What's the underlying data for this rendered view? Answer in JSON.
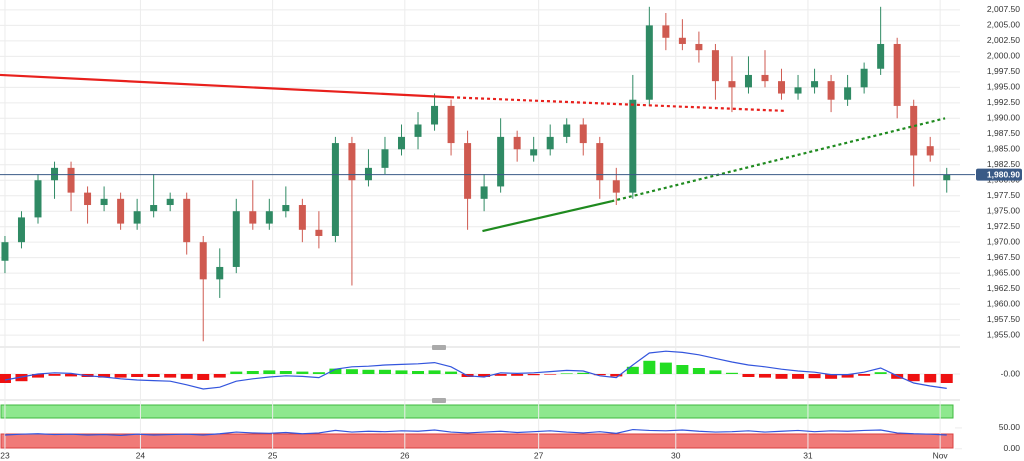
{
  "chart_data": {
    "type": "candlestick",
    "xlim": [
      -0.3,
      57.5
    ],
    "xticks": [
      {
        "value": 0.0,
        "label": "23"
      },
      {
        "value": 8.2,
        "label": "24"
      },
      {
        "value": 16.2,
        "label": "25"
      },
      {
        "value": 24.2,
        "label": "26"
      },
      {
        "value": 32.3,
        "label": "27"
      },
      {
        "value": 40.6,
        "label": "30"
      },
      {
        "value": 48.6,
        "label": "31"
      },
      {
        "value": 56.6,
        "label": "Nov"
      }
    ],
    "ylim": [
      1953.4,
      2009.1
    ],
    "yticks": [
      {
        "value": 2007.5,
        "label": "2,007.50"
      },
      {
        "value": 2005,
        "label": "2,005.00"
      },
      {
        "value": 2002.5,
        "label": "2,002.50"
      },
      {
        "value": 2000,
        "label": "2,000.00"
      },
      {
        "value": 1997.5,
        "label": "1,997.50"
      },
      {
        "value": 1995,
        "label": "1,995.00"
      },
      {
        "value": 1992.5,
        "label": "1,992.50"
      },
      {
        "value": 1990,
        "label": "1,990.00"
      },
      {
        "value": 1987.5,
        "label": "1,987.50"
      },
      {
        "value": 1985,
        "label": "1,985.00"
      },
      {
        "value": 1982.5,
        "label": "1,982.50"
      },
      {
        "value": 1980,
        "label": "1,980.00"
      },
      {
        "value": 1977.5,
        "label": "1,977.50"
      },
      {
        "value": 1975,
        "label": "1,975.00"
      },
      {
        "value": 1972.5,
        "label": "1,972.50"
      },
      {
        "value": 1970,
        "label": "1,970.00"
      },
      {
        "value": 1967.5,
        "label": "1,967.50"
      },
      {
        "value": 1965,
        "label": "1,965.00"
      },
      {
        "value": 1962.5,
        "label": "1,962.50"
      },
      {
        "value": 1960,
        "label": "1,960.00"
      },
      {
        "value": 1957.5,
        "label": "1,957.50"
      },
      {
        "value": 1955,
        "label": "1,955.00"
      }
    ],
    "grid": true,
    "up_color": "#2f8a64",
    "down_color": "#cf5a50",
    "open": [
      1967,
      1970,
      1974,
      1980,
      1982,
      1978,
      1976,
      1977,
      1973,
      1975,
      1976,
      1977,
      1970,
      1964,
      1966,
      1975,
      1973,
      1975,
      1976,
      1972,
      1971,
      1986,
      1980,
      1982,
      1985,
      1987,
      1989,
      1992,
      1986,
      1977,
      1979,
      1987,
      1984,
      1985,
      1987,
      1989,
      1986,
      1980,
      1978,
      1993,
      2005,
      2003,
      2002,
      2001,
      1996,
      1995,
      1997,
      1996,
      1994,
      1995,
      1996,
      1993,
      1995,
      1998,
      2002,
      1992,
      1985.5,
      1980
    ],
    "high": [
      1971,
      1975,
      1981,
      1983,
      1983,
      1979,
      1979,
      1978,
      1977,
      1981,
      1978,
      1978,
      1971,
      1969,
      1977,
      1980,
      1977,
      1979,
      1977,
      1975,
      1987,
      1987,
      1985,
      1987,
      1989,
      1991,
      1994,
      1993,
      1988,
      1981,
      1990,
      1988,
      1987,
      1989,
      1990,
      1990,
      1987,
      1982,
      1997,
      2008,
      2007,
      2006,
      2004,
      2002,
      2000,
      2000,
      2001,
      1998,
      1997,
      1998,
      1997,
      1997,
      1999,
      2008,
      2003,
      1993,
      1987,
      1982
    ],
    "low": [
      1965,
      1969,
      1973,
      1977,
      1975,
      1973,
      1975,
      1972,
      1972,
      1974,
      1975,
      1968,
      1954,
      1961,
      1965,
      1972,
      1972,
      1974,
      1970,
      1969,
      1970,
      1963,
      1979,
      1981,
      1984,
      1985,
      1988,
      1984,
      1972,
      1975,
      1978,
      1983,
      1983,
      1984,
      1986,
      1984,
      1977,
      1976,
      1977,
      1992,
      2001,
      2001,
      1999,
      1993,
      1991,
      1994,
      1995,
      1993,
      1993,
      1994,
      1991,
      1992,
      1994,
      1997,
      1990,
      1979,
      1983,
      1978
    ],
    "close": [
      1970,
      1974,
      1980,
      1982,
      1978,
      1976,
      1977,
      1973,
      1975,
      1976,
      1977,
      1970,
      1964,
      1966,
      1975,
      1973,
      1975,
      1976,
      1972,
      1971,
      1986,
      1980,
      1982,
      1985,
      1987,
      1989,
      1992,
      1986,
      1977,
      1979,
      1987,
      1985,
      1985,
      1987,
      1989,
      1986,
      1980,
      1978,
      1993,
      2005,
      2003,
      2002,
      2001,
      1996,
      1995,
      1997,
      1996,
      1994,
      1995,
      1996,
      1993,
      1995,
      1998,
      2002,
      1992,
      1984,
      1984,
      1980.9
    ],
    "last_price": {
      "value": 1980.9,
      "label": "1,980.90",
      "color": "#3a5a86"
    },
    "trendlines": [
      {
        "color": "#e8201c",
        "x": [
          -0.3,
          27.0,
          47.2
        ],
        "y": [
          1997.0,
          1993.4,
          1991.2
        ]
      },
      {
        "color": "#1f8a1f",
        "x": [
          28.9,
          36.7,
          56.9
        ],
        "y": [
          1971.8,
          1976.6,
          1990.0
        ]
      }
    ],
    "macd": {
      "ylim": [
        -4,
        4
      ],
      "yticks": [
        {
          "value": 0,
          "label": "-0.00"
        }
      ],
      "histogram": [
        -1.5,
        -1.2,
        -0.6,
        -0.3,
        -0.4,
        -0.5,
        -0.6,
        -0.6,
        -0.5,
        -0.5,
        -0.6,
        -0.8,
        -1.0,
        -0.6,
        0.4,
        0.5,
        0.6,
        0.5,
        0.4,
        0.3,
        0.9,
        0.8,
        0.7,
        0.7,
        0.6,
        0.5,
        0.6,
        0.4,
        -0.5,
        -0.5,
        -0.3,
        -0.3,
        -0.2,
        -0.1,
        0.1,
        0.2,
        -0.2,
        -0.4,
        1.2,
        2.2,
        1.9,
        1.5,
        1.0,
        0.6,
        0.2,
        -0.5,
        -0.6,
        -0.8,
        -0.8,
        -0.7,
        -0.8,
        -0.6,
        -0.3,
        0.3,
        -0.8,
        -1.2,
        -1.4,
        -1.5
      ],
      "line": [
        -1.0,
        -0.5,
        0,
        0.2,
        0.1,
        -0.3,
        -0.5,
        -0.8,
        -1.0,
        -1.1,
        -1.2,
        -1.8,
        -2.5,
        -2.2,
        -1.2,
        -0.8,
        -0.5,
        -0.3,
        -0.4,
        -0.6,
        0.8,
        1.2,
        1.3,
        1.5,
        1.6,
        1.7,
        1.9,
        1.2,
        -0.3,
        -0.5,
        0.2,
        0.1,
        0.2,
        0.4,
        0.6,
        0.5,
        -0.3,
        -0.6,
        1.5,
        3.5,
        3.8,
        3.6,
        3.2,
        2.6,
        2.0,
        1.5,
        1.2,
        0.8,
        0.5,
        0.3,
        -0.1,
        -0.1,
        0.3,
        1.0,
        -0.3,
        -1.5,
        -2.0,
        -2.4
      ],
      "up_color": "#22dd22",
      "down_color": "#ee1111",
      "line_color": "#3355dd"
    },
    "oscillator": {
      "ylim": [
        -3,
        105
      ],
      "yticks": [
        {
          "value": 50,
          "label": "50.00"
        },
        {
          "value": 0,
          "label": "0.00"
        }
      ],
      "line": [
        33,
        35,
        36,
        34,
        35,
        33,
        34,
        32,
        35,
        33,
        34,
        35,
        33,
        36,
        40,
        38,
        37,
        39,
        36,
        38,
        44,
        40,
        42,
        41,
        43,
        42,
        45,
        40,
        38,
        40,
        42,
        39,
        41,
        43,
        40,
        38,
        41,
        37,
        46,
        44,
        43,
        45,
        42,
        40,
        41,
        43,
        40,
        42,
        44,
        41,
        43,
        42,
        44,
        45,
        38,
        36,
        35,
        33
      ],
      "line_color": "#3355dd"
    }
  }
}
